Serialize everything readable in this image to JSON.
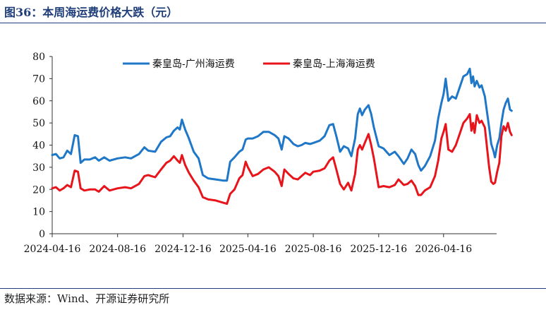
{
  "figure": {
    "title": "图36：本周海运费价格大跌（元）",
    "source": "数据来源：Wind、开源证券研究所"
  },
  "chart_data": {
    "type": "line",
    "title": "",
    "xlabel": "",
    "ylabel": "",
    "ylim": [
      0,
      80
    ],
    "y_ticks": [
      0,
      10,
      20,
      30,
      40,
      50,
      60,
      70,
      80
    ],
    "x_ticks": [
      "2024-04-16",
      "2024-08-16",
      "2024-12-16",
      "2025-04-16",
      "2025-08-16",
      "2025-12-16",
      "2026-04-16"
    ],
    "x_range": [
      "2024-04-16",
      "2026-07-24"
    ],
    "legend_position": "top",
    "grid": false,
    "series": [
      {
        "name": "秦皇岛-广州海运费",
        "color": "#1f77c8",
        "points": [
          [
            "2024-04-16",
            35.5
          ],
          [
            "2024-04-23",
            36
          ],
          [
            "2024-04-30",
            34
          ],
          [
            "2024-05-07",
            34.5
          ],
          [
            "2024-05-14",
            37.5
          ],
          [
            "2024-05-21",
            36
          ],
          [
            "2024-05-28",
            44.5
          ],
          [
            "2024-06-03",
            44
          ],
          [
            "2024-06-08",
            32
          ],
          [
            "2024-06-15",
            33.5
          ],
          [
            "2024-06-25",
            33.5
          ],
          [
            "2024-07-05",
            34.5
          ],
          [
            "2024-07-12",
            33
          ],
          [
            "2024-07-22",
            34.5
          ],
          [
            "2024-08-01",
            33
          ],
          [
            "2024-08-16",
            34
          ],
          [
            "2024-08-30",
            34.5
          ],
          [
            "2024-09-10",
            34
          ],
          [
            "2024-09-25",
            36
          ],
          [
            "2024-10-05",
            39
          ],
          [
            "2024-10-12",
            37.5
          ],
          [
            "2024-10-25",
            37
          ],
          [
            "2024-11-05",
            41.5
          ],
          [
            "2024-11-15",
            43.5
          ],
          [
            "2024-11-22",
            44
          ],
          [
            "2024-11-29",
            46.5
          ],
          [
            "2024-12-06",
            48
          ],
          [
            "2024-12-10",
            47
          ],
          [
            "2024-12-14",
            51.5
          ],
          [
            "2024-12-20",
            47
          ],
          [
            "2024-12-27",
            43
          ],
          [
            "2025-01-05",
            37
          ],
          [
            "2025-01-14",
            34
          ],
          [
            "2025-01-22",
            26.5
          ],
          [
            "2025-02-01",
            25
          ],
          [
            "2025-02-15",
            24.5
          ],
          [
            "2025-03-01",
            24
          ],
          [
            "2025-03-08",
            24
          ],
          [
            "2025-03-14",
            32.5
          ],
          [
            "2025-03-22",
            34.5
          ],
          [
            "2025-03-31",
            37
          ],
          [
            "2025-04-06",
            38
          ],
          [
            "2025-04-12",
            42.5
          ],
          [
            "2025-04-16",
            43
          ],
          [
            "2025-04-25",
            43
          ],
          [
            "2025-05-05",
            44
          ],
          [
            "2025-05-15",
            46
          ],
          [
            "2025-05-25",
            46
          ],
          [
            "2025-06-05",
            44.5
          ],
          [
            "2025-06-12",
            43
          ],
          [
            "2025-06-18",
            38
          ],
          [
            "2025-06-23",
            44
          ],
          [
            "2025-07-01",
            43
          ],
          [
            "2025-07-10",
            40.5
          ],
          [
            "2025-07-18",
            39.5
          ],
          [
            "2025-07-25",
            40
          ],
          [
            "2025-08-01",
            41
          ],
          [
            "2025-08-10",
            40.5
          ],
          [
            "2025-08-16",
            41
          ],
          [
            "2025-08-28",
            42
          ],
          [
            "2025-09-06",
            44
          ],
          [
            "2025-09-15",
            49
          ],
          [
            "2025-09-22",
            49.5
          ],
          [
            "2025-09-28",
            44
          ],
          [
            "2025-10-05",
            37
          ],
          [
            "2025-10-12",
            39.5
          ],
          [
            "2025-10-20",
            38.5
          ],
          [
            "2025-10-26",
            35
          ],
          [
            "2025-11-02",
            43
          ],
          [
            "2025-11-07",
            54
          ],
          [
            "2025-11-11",
            56.5
          ],
          [
            "2025-11-15",
            53.5
          ],
          [
            "2025-11-20",
            56
          ],
          [
            "2025-11-27",
            58
          ],
          [
            "2025-12-02",
            54
          ],
          [
            "2025-12-07",
            48
          ],
          [
            "2025-12-16",
            39.5
          ],
          [
            "2025-12-25",
            38.5
          ],
          [
            "2026-01-05",
            35.5
          ],
          [
            "2026-01-15",
            37
          ],
          [
            "2026-01-22",
            35
          ],
          [
            "2026-02-01",
            31.5
          ],
          [
            "2026-02-08",
            34
          ],
          [
            "2026-02-15",
            38
          ],
          [
            "2026-02-22",
            36
          ],
          [
            "2026-02-28",
            31
          ],
          [
            "2026-03-05",
            28.5
          ],
          [
            "2026-03-12",
            30.5
          ],
          [
            "2026-03-22",
            35
          ],
          [
            "2026-03-31",
            42
          ],
          [
            "2026-04-06",
            52
          ],
          [
            "2026-04-12",
            59
          ],
          [
            "2026-04-16",
            63
          ],
          [
            "2026-04-20",
            70
          ],
          [
            "2026-04-25",
            60
          ],
          [
            "2026-05-02",
            62
          ],
          [
            "2026-05-09",
            61
          ],
          [
            "2026-05-16",
            66
          ],
          [
            "2026-05-23",
            71
          ],
          [
            "2026-05-30",
            72
          ],
          [
            "2026-06-04",
            74.5
          ],
          [
            "2026-06-07",
            68
          ],
          [
            "2026-06-10",
            71
          ],
          [
            "2026-06-13",
            66.5
          ],
          [
            "2026-06-17",
            69
          ],
          [
            "2026-06-22",
            66
          ],
          [
            "2026-06-26",
            67
          ],
          [
            "2026-07-02",
            62
          ],
          [
            "2026-07-10",
            48
          ],
          [
            "2026-07-14",
            40.5
          ],
          [
            "2026-07-18",
            37.5
          ],
          [
            "2026-07-21",
            34.5
          ],
          [
            "2026-07-25",
            40
          ],
          [
            "2026-07-29",
            43
          ],
          [
            "2026-08-02",
            50
          ],
          [
            "2026-08-06",
            56
          ],
          [
            "2026-08-10",
            59
          ],
          [
            "2026-08-14",
            61
          ],
          [
            "2026-08-18",
            56
          ],
          [
            "2026-08-21",
            55.5
          ]
        ]
      },
      {
        "name": "秦皇岛-上海海运费",
        "color": "#e8141b",
        "points": [
          [
            "2024-04-16",
            20.5
          ],
          [
            "2024-04-23",
            21
          ],
          [
            "2024-04-30",
            19.5
          ],
          [
            "2024-05-07",
            20.5
          ],
          [
            "2024-05-14",
            22
          ],
          [
            "2024-05-21",
            21
          ],
          [
            "2024-05-28",
            28.5
          ],
          [
            "2024-06-03",
            28
          ],
          [
            "2024-06-08",
            20.5
          ],
          [
            "2024-06-15",
            19.5
          ],
          [
            "2024-06-25",
            20
          ],
          [
            "2024-07-05",
            20
          ],
          [
            "2024-07-12",
            19
          ],
          [
            "2024-07-22",
            21.5
          ],
          [
            "2024-08-01",
            19.5
          ],
          [
            "2024-08-16",
            20.5
          ],
          [
            "2024-08-30",
            21
          ],
          [
            "2024-09-10",
            20.5
          ],
          [
            "2024-09-25",
            22.5
          ],
          [
            "2024-10-05",
            26
          ],
          [
            "2024-10-12",
            26.5
          ],
          [
            "2024-10-25",
            25.5
          ],
          [
            "2024-11-05",
            29
          ],
          [
            "2024-11-15",
            32
          ],
          [
            "2024-11-22",
            33
          ],
          [
            "2024-11-29",
            35
          ],
          [
            "2024-12-06",
            33
          ],
          [
            "2024-12-10",
            32
          ],
          [
            "2024-12-14",
            35.5
          ],
          [
            "2024-12-20",
            31
          ],
          [
            "2024-12-27",
            27.5
          ],
          [
            "2025-01-05",
            24
          ],
          [
            "2025-01-14",
            21
          ],
          [
            "2025-01-22",
            16.5
          ],
          [
            "2025-02-01",
            15.5
          ],
          [
            "2025-02-15",
            15
          ],
          [
            "2025-03-01",
            14
          ],
          [
            "2025-03-08",
            13.5
          ],
          [
            "2025-03-14",
            18
          ],
          [
            "2025-03-22",
            20
          ],
          [
            "2025-03-31",
            25
          ],
          [
            "2025-04-06",
            26.5
          ],
          [
            "2025-04-12",
            32.5
          ],
          [
            "2025-04-16",
            30
          ],
          [
            "2025-04-25",
            26
          ],
          [
            "2025-05-05",
            27
          ],
          [
            "2025-05-15",
            29
          ],
          [
            "2025-05-25",
            30
          ],
          [
            "2025-06-05",
            28
          ],
          [
            "2025-06-12",
            26
          ],
          [
            "2025-06-18",
            21.5
          ],
          [
            "2025-06-23",
            29
          ],
          [
            "2025-07-01",
            27
          ],
          [
            "2025-07-10",
            25
          ],
          [
            "2025-07-18",
            24.5
          ],
          [
            "2025-07-25",
            26
          ],
          [
            "2025-08-01",
            27.5
          ],
          [
            "2025-08-10",
            26.5
          ],
          [
            "2025-08-16",
            28
          ],
          [
            "2025-08-28",
            28.5
          ],
          [
            "2025-09-06",
            29.5
          ],
          [
            "2025-09-15",
            33
          ],
          [
            "2025-09-22",
            34.5
          ],
          [
            "2025-09-28",
            29
          ],
          [
            "2025-10-05",
            22.5
          ],
          [
            "2025-10-12",
            20
          ],
          [
            "2025-10-20",
            23
          ],
          [
            "2025-10-26",
            19.5
          ],
          [
            "2025-11-02",
            27
          ],
          [
            "2025-11-07",
            38
          ],
          [
            "2025-11-11",
            40
          ],
          [
            "2025-11-15",
            38
          ],
          [
            "2025-11-20",
            41
          ],
          [
            "2025-11-27",
            45
          ],
          [
            "2025-12-02",
            40
          ],
          [
            "2025-12-07",
            34
          ],
          [
            "2025-12-16",
            21
          ],
          [
            "2025-12-25",
            21.5
          ],
          [
            "2026-01-05",
            21
          ],
          [
            "2026-01-15",
            22
          ],
          [
            "2026-01-22",
            24.5
          ],
          [
            "2026-02-01",
            22
          ],
          [
            "2026-02-08",
            22.5
          ],
          [
            "2026-02-15",
            24
          ],
          [
            "2026-02-22",
            21.5
          ],
          [
            "2026-02-28",
            17.5
          ],
          [
            "2026-03-05",
            17.5
          ],
          [
            "2026-03-12",
            19.5
          ],
          [
            "2026-03-22",
            21
          ],
          [
            "2026-03-31",
            26
          ],
          [
            "2026-04-06",
            33
          ],
          [
            "2026-04-12",
            43
          ],
          [
            "2026-04-16",
            46
          ],
          [
            "2026-04-20",
            49.5
          ],
          [
            "2026-04-25",
            38
          ],
          [
            "2026-05-02",
            37
          ],
          [
            "2026-05-09",
            40
          ],
          [
            "2026-05-16",
            45
          ],
          [
            "2026-05-23",
            50
          ],
          [
            "2026-05-30",
            52
          ],
          [
            "2026-06-04",
            54
          ],
          [
            "2026-06-07",
            46.5
          ],
          [
            "2026-06-10",
            50
          ],
          [
            "2026-06-13",
            45.5
          ],
          [
            "2026-06-17",
            53.5
          ],
          [
            "2026-06-22",
            50
          ],
          [
            "2026-06-26",
            51
          ],
          [
            "2026-07-02",
            48
          ],
          [
            "2026-07-10",
            30
          ],
          [
            "2026-07-14",
            23.5
          ],
          [
            "2026-07-18",
            22.5
          ],
          [
            "2026-07-21",
            23
          ],
          [
            "2026-07-25",
            28
          ],
          [
            "2026-07-29",
            32
          ],
          [
            "2026-08-02",
            44
          ],
          [
            "2026-08-06",
            48.5
          ],
          [
            "2026-08-10",
            46.5
          ],
          [
            "2026-08-14",
            50
          ],
          [
            "2026-08-18",
            46
          ],
          [
            "2026-08-21",
            44.5
          ]
        ]
      }
    ]
  }
}
